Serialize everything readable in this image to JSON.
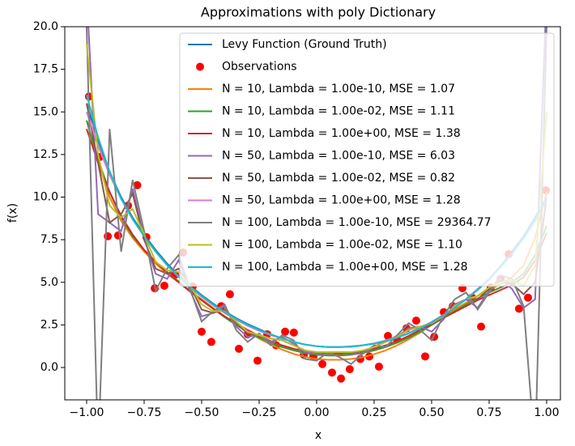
{
  "chart_data": {
    "type": "line",
    "title": "Approximations with poly Dictionary",
    "xlabel": "x",
    "ylabel": "f(x)",
    "xlim": [
      -1.095,
      1.06
    ],
    "ylim": [
      -1.9,
      20
    ],
    "xticks": [
      {
        "value": -1,
        "label": "−1.00"
      },
      {
        "value": -0.75,
        "label": "−0.75"
      },
      {
        "value": -0.5,
        "label": "−0.50"
      },
      {
        "value": -0.25,
        "label": "−0.25"
      },
      {
        "value": 0,
        "label": "0.00"
      },
      {
        "value": 0.25,
        "label": "0.25"
      },
      {
        "value": 0.5,
        "label": "0.50"
      },
      {
        "value": 0.75,
        "label": "0.75"
      },
      {
        "value": 1,
        "label": "1.00"
      }
    ],
    "yticks": [
      {
        "value": 0,
        "label": "0.0"
      },
      2.5,
      {
        "value": 5,
        "label": "5.0"
      },
      7.5,
      {
        "value": 10,
        "label": "10.0"
      },
      12.5,
      {
        "value": 15,
        "label": "15.0"
      },
      17.5,
      {
        "value": 20,
        "label": "20.0"
      }
    ],
    "grid": false,
    "legend": "upper right",
    "x": [
      -1,
      -0.95,
      -0.9,
      -0.85,
      -0.8,
      -0.75,
      -0.7,
      -0.65,
      -0.6,
      -0.55,
      -0.5,
      -0.45,
      -0.4,
      -0.35,
      -0.3,
      -0.25,
      -0.2,
      -0.15,
      -0.1,
      -0.05,
      0,
      0.05,
      0.1,
      0.15,
      0.2,
      0.25,
      0.3,
      0.35,
      0.4,
      0.45,
      0.5,
      0.55,
      0.6,
      0.65,
      0.7,
      0.75,
      0.8,
      0.85,
      0.9,
      0.95,
      1
    ],
    "series": [
      {
        "name": "Levy Function (Ground Truth)",
        "color": "#1f77b4",
        "values": [
          15.5,
          13.3,
          11.5,
          10.0,
          8.8,
          7.8,
          6.9,
          6.1,
          5.4,
          4.8,
          4.25,
          3.75,
          3.3,
          2.9,
          2.55,
          2.25,
          1.95,
          1.7,
          1.5,
          1.35,
          1.25,
          1.2,
          1.2,
          1.22,
          1.3,
          1.4,
          1.55,
          1.75,
          2.0,
          2.3,
          2.65,
          3.05,
          3.5,
          4.0,
          4.6,
          5.2,
          5.95,
          6.8,
          7.7,
          8.8,
          10.0
        ]
      },
      {
        "name": "N = 10, Lambda = 1.00e-10, MSE = 1.07",
        "color": "#ff7f0e",
        "values": [
          14.5,
          12.0,
          10.0,
          8.6,
          7.6,
          6.8,
          6.1,
          5.5,
          5.0,
          4.5,
          4.0,
          3.5,
          3.0,
          2.5,
          2.1,
          1.7,
          1.35,
          1.05,
          0.8,
          0.62,
          0.5,
          0.45,
          0.45,
          0.5,
          0.6,
          0.78,
          1.0,
          1.3,
          1.65,
          2.05,
          2.5,
          2.95,
          3.4,
          3.8,
          4.2,
          4.55,
          4.9,
          5.3,
          6.0,
          7.6,
          10.3
        ]
      },
      {
        "name": "N = 10, Lambda = 1.00e-02, MSE = 1.11",
        "color": "#2ca02c",
        "values": [
          14.5,
          12.2,
          10.3,
          8.8,
          7.7,
          6.9,
          6.2,
          5.6,
          5.05,
          4.5,
          3.95,
          3.45,
          2.95,
          2.5,
          2.1,
          1.75,
          1.45,
          1.2,
          1.0,
          0.85,
          0.75,
          0.7,
          0.7,
          0.75,
          0.85,
          1.0,
          1.2,
          1.45,
          1.75,
          2.1,
          2.5,
          2.9,
          3.3,
          3.7,
          4.05,
          4.4,
          4.7,
          5.0,
          5.5,
          6.6,
          8.3
        ]
      },
      {
        "name": "N = 10, Lambda = 1.00e+00, MSE = 1.38",
        "color": "#d62728",
        "values": [
          14.0,
          12.0,
          10.3,
          8.9,
          7.8,
          6.9,
          6.2,
          5.55,
          5.0,
          4.45,
          3.95,
          3.45,
          3.0,
          2.6,
          2.2,
          1.85,
          1.55,
          1.3,
          1.1,
          0.95,
          0.85,
          0.8,
          0.8,
          0.85,
          0.95,
          1.1,
          1.3,
          1.55,
          1.85,
          2.2,
          2.55,
          2.9,
          3.25,
          3.6,
          3.95,
          4.25,
          4.55,
          4.85,
          5.3,
          6.3,
          7.9
        ]
      },
      {
        "name": "N = 50, Lambda = 1.00e-10, MSE = 6.03",
        "color": "#9467bd",
        "values": [
          22,
          9,
          8.5,
          8.0,
          10.5,
          7.6,
          5.5,
          5.2,
          6.3,
          4.5,
          3.0,
          3.2,
          3.6,
          2.4,
          1.8,
          1.9,
          1.5,
          1.8,
          1.4,
          0.9,
          0.8,
          0.8,
          0.9,
          0.8,
          0.8,
          1.2,
          1.6,
          1.8,
          2.3,
          2.4,
          2.1,
          2.8,
          3.7,
          4.0,
          3.5,
          4.5,
          5.2,
          4.6,
          3.5,
          4.0,
          22
        ]
      },
      {
        "name": "N = 50, Lambda = 1.00e-02, MSE = 0.82",
        "color": "#8c564b",
        "values": [
          15.5,
          12.0,
          8.5,
          9.0,
          10.2,
          7.5,
          5.8,
          5.5,
          5.8,
          4.8,
          3.4,
          3.2,
          3.4,
          2.6,
          2.0,
          1.9,
          1.7,
          1.6,
          1.3,
          1.0,
          0.9,
          0.85,
          0.85,
          0.85,
          0.95,
          1.2,
          1.5,
          1.8,
          2.2,
          2.4,
          2.5,
          2.9,
          3.6,
          4.0,
          4.0,
          4.6,
          5.1,
          4.9,
          4.3,
          5.0,
          10.0
        ]
      },
      {
        "name": "N = 50, Lambda = 1.00e+00, MSE = 1.28",
        "color": "#e377c2",
        "values": [
          15.0,
          13.0,
          11.3,
          9.9,
          8.7,
          7.7,
          6.8,
          6.0,
          5.3,
          4.7,
          4.15,
          3.65,
          3.2,
          2.8,
          2.45,
          2.15,
          1.9,
          1.7,
          1.5,
          1.35,
          1.25,
          1.2,
          1.2,
          1.25,
          1.3,
          1.42,
          1.58,
          1.78,
          2.03,
          2.33,
          2.68,
          3.08,
          3.52,
          4.02,
          4.6,
          5.2,
          5.9,
          6.7,
          7.6,
          8.6,
          9.8
        ]
      },
      {
        "name": "N = 100, Lambda = 1.00e-10, MSE = 29364.77",
        "color": "#7f7f7f",
        "values": [
          20,
          -5,
          14.0,
          6.8,
          11.0,
          8.0,
          4.5,
          5.8,
          6.6,
          4.6,
          2.7,
          3.3,
          3.7,
          2.2,
          1.5,
          2.0,
          1.3,
          1.9,
          1.6,
          0.5,
          0.4,
          0.9,
          0.6,
          0.2,
          0.8,
          1.3,
          1.2,
          1.9,
          2.6,
          2.2,
          1.6,
          3.0,
          4.0,
          4.4,
          3.4,
          4.4,
          5.4,
          5.2,
          3.6,
          -5,
          20
        ]
      },
      {
        "name": "N = 100, Lambda = 1.00e-02, MSE = 1.10",
        "color": "#bcbd22",
        "values": [
          19,
          12.5,
          9.5,
          8.8,
          9.3,
          7.8,
          6.2,
          5.7,
          5.6,
          4.8,
          3.7,
          3.3,
          3.3,
          2.7,
          2.1,
          1.9,
          1.7,
          1.6,
          1.3,
          1.0,
          0.9,
          0.9,
          0.9,
          0.9,
          1.0,
          1.2,
          1.5,
          1.8,
          2.2,
          2.4,
          2.6,
          3.0,
          3.6,
          4.0,
          4.2,
          4.7,
          5.0,
          5.1,
          4.8,
          6.0,
          15
        ]
      },
      {
        "name": "N = 100, Lambda = 1.00e+00, MSE = 1.28",
        "color": "#17becf",
        "values": [
          16.0,
          13.5,
          11.5,
          9.9,
          8.7,
          7.7,
          6.8,
          6.0,
          5.35,
          4.75,
          4.2,
          3.7,
          3.25,
          2.85,
          2.5,
          2.2,
          1.95,
          1.7,
          1.5,
          1.35,
          1.25,
          1.2,
          1.2,
          1.22,
          1.3,
          1.4,
          1.55,
          1.75,
          2.0,
          2.3,
          2.65,
          3.05,
          3.5,
          4.0,
          4.55,
          5.15,
          5.9,
          6.7,
          7.6,
          8.7,
          10.0
        ]
      }
    ],
    "scatter": {
      "name": "Observations",
      "color": "#ff0000",
      "x": [
        -0.99,
        -0.944,
        -0.908,
        -0.863,
        -0.82,
        -0.78,
        -0.74,
        -0.704,
        -0.662,
        -0.616,
        -0.581,
        -0.539,
        -0.5,
        -0.458,
        -0.415,
        -0.377,
        -0.338,
        -0.3,
        -0.257,
        -0.215,
        -0.176,
        -0.137,
        -0.099,
        -0.056,
        -0.014,
        0.025,
        0.067,
        0.106,
        0.144,
        0.19,
        0.229,
        0.271,
        0.31,
        0.349,
        0.391,
        0.433,
        0.472,
        0.511,
        0.553,
        0.592,
        0.634,
        0.676,
        0.715,
        0.757,
        0.8,
        0.835,
        0.88,
        0.919,
        0.997
      ],
      "y": [
        15.9,
        12.35,
        7.7,
        7.75,
        9.5,
        10.7,
        7.65,
        4.65,
        4.8,
        5.45,
        6.75,
        4.75,
        2.1,
        1.5,
        3.6,
        4.3,
        1.1,
        1.95,
        0.4,
        1.95,
        1.3,
        2.1,
        2.05,
        0.75,
        0.65,
        0.2,
        -0.3,
        -0.65,
        -0.1,
        0.5,
        0.65,
        0.05,
        1.85,
        1.65,
        2.3,
        2.75,
        0.65,
        1.8,
        3.25,
        3.6,
        4.65,
        4.1,
        2.4,
        4.7,
        5.2,
        6.65,
        3.45,
        4.1,
        10.4
      ]
    }
  }
}
